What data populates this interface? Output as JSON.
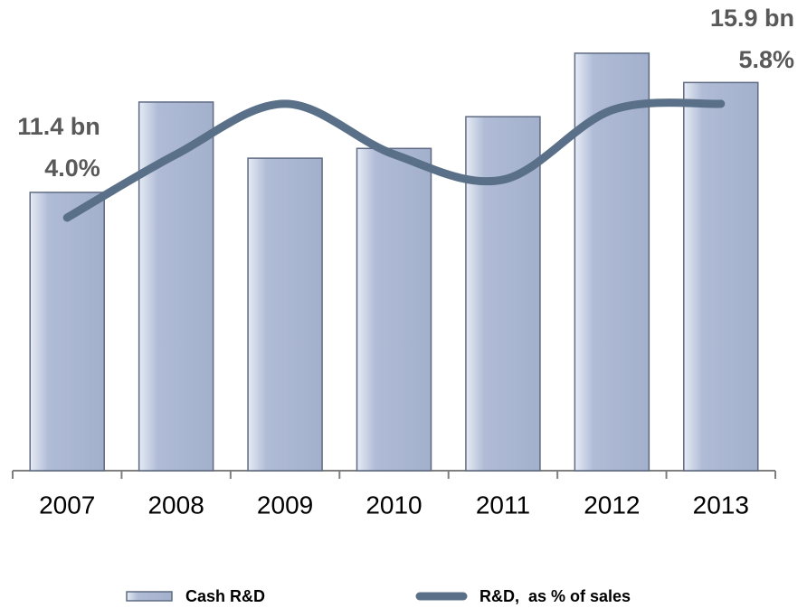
{
  "chart_data": {
    "type": "bar",
    "categories": [
      "2007",
      "2008",
      "2009",
      "2010",
      "2011",
      "2012",
      "2013"
    ],
    "series": [
      {
        "name": "Cash R&D",
        "color": "#b0bcd6",
        "values": [
          11.4,
          15.1,
          12.8,
          13.2,
          14.5,
          17.1,
          15.9
        ],
        "value_labels": [
          "11.4 bn",
          null,
          null,
          null,
          null,
          null,
          "15.9 bn"
        ]
      },
      {
        "name": "R&D,  as % of sales",
        "type": "line",
        "axis": "y2",
        "color": "#5a7089",
        "values": [
          4.0,
          5.0,
          5.8,
          5.0,
          4.6,
          5.7,
          5.8
        ],
        "value_labels": [
          "4.0%",
          null,
          null,
          null,
          null,
          null,
          "5.8%"
        ]
      }
    ],
    "ylim": [
      0,
      17.8
    ],
    "y2lim": [
      0,
      6.87
    ]
  }
}
